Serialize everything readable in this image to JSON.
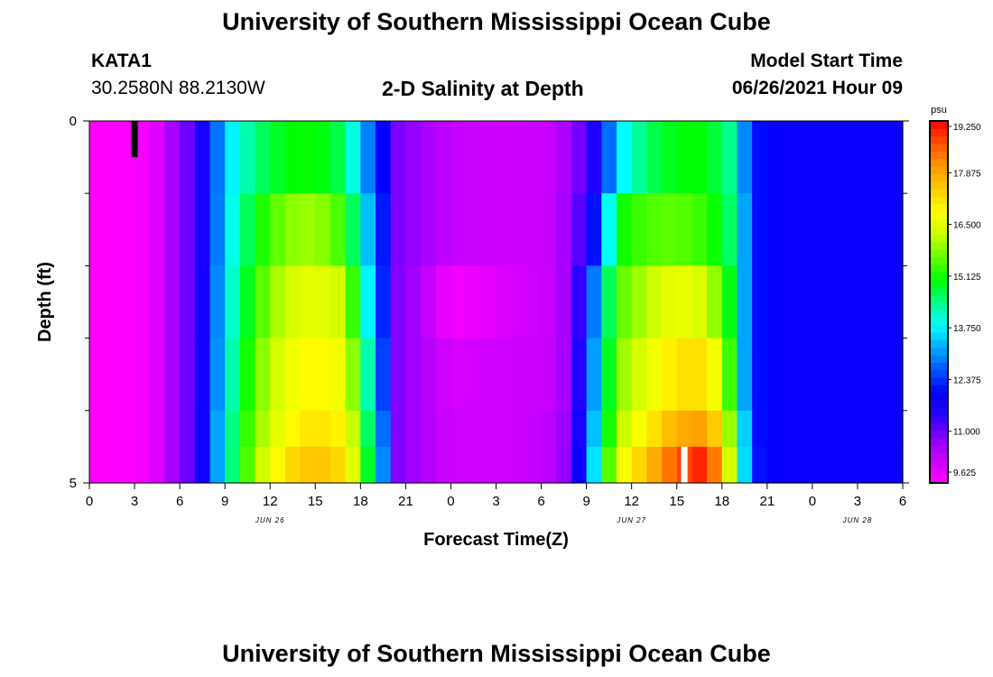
{
  "page": {
    "title_top": "University of Southern Mississippi Ocean Cube",
    "title_bottom": "University of Southern Mississippi Ocean Cube",
    "station_id": "KATA1",
    "station_coords": "30.2580N  88.2130W",
    "plot_title": "2-D Salinity at Depth",
    "model_start_label": "Model Start Time",
    "model_start_value": "06/26/2021 Hour 09"
  },
  "chart_data": {
    "type": "heatmap",
    "title": "2-D Salinity at Depth",
    "xlabel": "Forecast Time(Z)",
    "ylabel": "Depth (ft)",
    "x_tick_labels": [
      "0",
      "3",
      "6",
      "9",
      "12",
      "15",
      "18",
      "21",
      "0",
      "3",
      "6",
      "9",
      "12",
      "15",
      "18",
      "21",
      "0",
      "3",
      "6"
    ],
    "x_range_hours": [
      0,
      54
    ],
    "date_labels": [
      {
        "hour": 12,
        "text": "JUN 26"
      },
      {
        "hour": 36,
        "text": "JUN 27"
      },
      {
        "hour": 51,
        "text": "JUN 28"
      }
    ],
    "y_range_ft": [
      0,
      5
    ],
    "y_tick_labels": [
      {
        "depth": 0,
        "text": "0"
      },
      {
        "depth": 5,
        "text": "5"
      }
    ],
    "y_minor_ticks": [
      1,
      2,
      3,
      4
    ],
    "colorbar": {
      "unit": "psu",
      "min": 9.625,
      "max": 19.25,
      "tick_labels": [
        "9.625",
        "11.000",
        "12.375",
        "13.750",
        "15.125",
        "16.500",
        "17.875",
        "19.250"
      ],
      "colors": [
        "#ff00ff",
        "#cc00ff",
        "#8800ff",
        "#2a00ff",
        "#0000ff",
        "#0055ff",
        "#00aaff",
        "#00ffff",
        "#00ff88",
        "#00ff00",
        "#66ff00",
        "#ccff00",
        "#ffff00",
        "#ffcc00",
        "#ff9900",
        "#ff5500",
        "#ff0000"
      ]
    },
    "markers": [
      {
        "hour": 3.0,
        "depth_from": 0,
        "depth_to": 0.5,
        "color": "#000000"
      },
      {
        "hour": 39.5,
        "depth_from": 4.5,
        "depth_to": 5,
        "color": "#ffffff"
      }
    ],
    "depth_rows": [
      0,
      1,
      2,
      3,
      4,
      4.5
    ],
    "time_knots_hours": [
      0,
      2,
      4,
      5,
      6,
      7,
      8,
      9,
      11,
      13,
      15,
      17,
      18,
      19.5,
      20,
      22,
      24,
      28,
      31,
      32,
      33,
      34,
      35,
      37,
      39,
      41,
      42,
      43,
      43.5,
      44,
      45,
      46,
      54
    ],
    "values": [
      [
        9.6,
        9.6,
        9.8,
        10.3,
        10.8,
        11.2,
        12.2,
        13.5,
        14.5,
        15.0,
        15.1,
        14.6,
        13.4,
        12.0,
        11.0,
        10.6,
        10.3,
        10.2,
        10.3,
        10.7,
        11.2,
        12.0,
        13.6,
        14.6,
        15.0,
        15.0,
        14.6,
        14.2,
        13.0,
        12.2,
        12.0,
        11.9,
        11.9
      ],
      [
        9.6,
        9.6,
        9.8,
        10.3,
        10.8,
        11.2,
        12.2,
        13.6,
        15.0,
        15.8,
        16.0,
        15.3,
        14.0,
        12.2,
        11.0,
        10.6,
        10.3,
        10.2,
        10.3,
        10.8,
        11.5,
        12.8,
        15.0,
        15.5,
        15.6,
        15.3,
        14.9,
        14.3,
        13.2,
        12.2,
        12.0,
        11.9,
        11.9
      ],
      [
        9.6,
        9.6,
        9.8,
        10.3,
        10.8,
        11.2,
        12.3,
        13.7,
        15.3,
        16.3,
        16.6,
        16.2,
        14.5,
        12.3,
        11.0,
        10.5,
        9.7,
        10.1,
        10.3,
        10.8,
        12.0,
        13.8,
        15.5,
        16.1,
        16.7,
        16.3,
        15.5,
        14.4,
        13.2,
        12.2,
        12.0,
        11.9,
        11.9
      ],
      [
        9.6,
        9.6,
        9.8,
        10.3,
        10.8,
        11.2,
        12.3,
        13.8,
        15.6,
        16.6,
        17.0,
        16.6,
        15.1,
        12.5,
        11.0,
        10.5,
        10.1,
        10.2,
        10.3,
        10.8,
        12.3,
        14.0,
        15.8,
        16.5,
        17.2,
        17.2,
        16.2,
        14.6,
        13.2,
        12.2,
        12.0,
        11.9,
        11.9
      ],
      [
        9.6,
        9.6,
        9.8,
        10.3,
        10.8,
        11.2,
        12.4,
        14.0,
        15.8,
        16.8,
        17.2,
        16.9,
        15.5,
        12.8,
        11.0,
        10.5,
        10.2,
        10.2,
        10.4,
        10.9,
        12.5,
        14.3,
        16.0,
        17.0,
        17.8,
        18.0,
        16.9,
        15.0,
        13.5,
        12.2,
        12.0,
        11.9,
        11.9
      ],
      [
        9.6,
        9.6,
        9.8,
        10.3,
        10.8,
        11.2,
        12.4,
        14.0,
        16.0,
        17.2,
        17.6,
        17.2,
        15.8,
        13.0,
        11.0,
        10.5,
        10.2,
        10.2,
        10.4,
        11.0,
        12.7,
        14.6,
        16.5,
        17.6,
        18.6,
        19.1,
        17.5,
        15.3,
        13.6,
        12.3,
        12.0,
        11.9,
        11.9
      ]
    ]
  }
}
